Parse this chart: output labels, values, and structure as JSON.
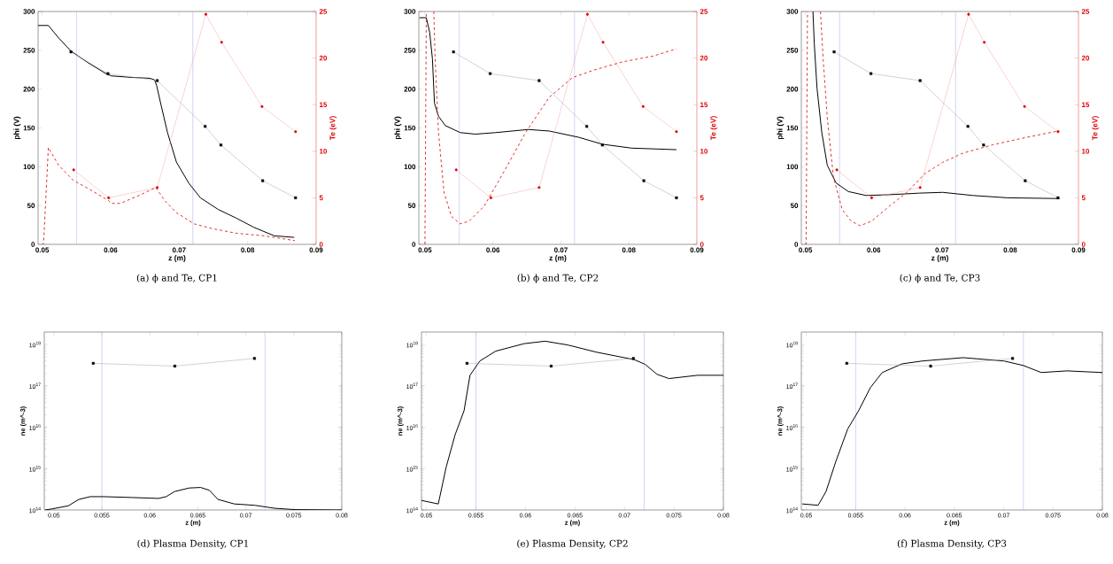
{
  "chart_data": [
    {
      "type": "line",
      "title": "(a) ϕ and Te, CP1",
      "xlabel": "z (m)",
      "ylabel": "phi (V)",
      "y2label": "Te (eV)",
      "xlim": [
        0.0494,
        0.09
      ],
      "xticks": [
        0.05,
        0.06,
        0.07,
        0.08,
        0.09
      ],
      "ylim": [
        0,
        300
      ],
      "yticks": [
        0,
        50,
        100,
        150,
        200,
        250,
        300
      ],
      "y2lim": [
        0,
        25
      ],
      "y2ticks": [
        0,
        5,
        10,
        15,
        20,
        25
      ],
      "ref_lines": [
        {
          "axis": "x",
          "value": 0.055,
          "color": "#b4b4f0"
        },
        {
          "axis": "x",
          "value": 0.072,
          "color": "#b4b4f0"
        }
      ],
      "series": [
        {
          "color": "#000000",
          "marker": "none",
          "line_style": "solid",
          "x": [
            0.0494,
            0.0509,
            0.0524,
            0.0542,
            0.0567,
            0.0593,
            0.0601,
            0.0632,
            0.0657,
            0.0664,
            0.0667,
            0.0674,
            0.0683,
            0.0696,
            0.0714,
            0.0731,
            0.0757,
            0.0783,
            0.0809,
            0.0839,
            0.0868
          ],
          "values": [
            282,
            282,
            266,
            249,
            234,
            220,
            217,
            215,
            214,
            212,
            205,
            178,
            144,
            106,
            79,
            60,
            45,
            34,
            22,
            11,
            9
          ]
        },
        {
          "color": "#000000",
          "marker": "square",
          "line_style": "solid",
          "x": [
            0.0542,
            0.0596,
            0.0668,
            0.0738,
            0.0761,
            0.0822,
            0.087
          ],
          "values": [
            248,
            220,
            211,
            152,
            128,
            82,
            60
          ]
        },
        {
          "color": "#e00000",
          "marker": "circle",
          "line_style": "solid",
          "axis": "y2",
          "x": [
            0.0546,
            0.0597,
            0.0668,
            0.0739,
            0.0762,
            0.0821,
            0.087
          ],
          "values": [
            8.0,
            5.0,
            6.1,
            24.7,
            21.7,
            14.8,
            12.1
          ]
        },
        {
          "color": "#e03030",
          "marker": "none",
          "line_style": "dashed",
          "axis": "y2",
          "x": [
            0.05,
            0.0502,
            0.0509,
            0.0524,
            0.0545,
            0.0567,
            0.0597,
            0.0601,
            0.0614,
            0.064,
            0.0666,
            0.0679,
            0.0696,
            0.0722,
            0.0748,
            0.0783,
            0.0826,
            0.0869
          ],
          "values": [
            0,
            0,
            10.4,
            8.5,
            6.9,
            6.0,
            4.7,
            4.4,
            4.4,
            5.2,
            6.1,
            4.7,
            3.4,
            2.2,
            1.7,
            1.2,
            0.9,
            0.4
          ]
        }
      ]
    },
    {
      "type": "line",
      "title": "(b) ϕ and Te, CP2",
      "xlabel": "z (m)",
      "ylabel": "phi (V)",
      "y2label": "Te (eV)",
      "xlim": [
        0.0491,
        0.09
      ],
      "xticks": [
        0.05,
        0.06,
        0.07,
        0.08,
        0.09
      ],
      "ylim": [
        0,
        300
      ],
      "yticks": [
        0,
        50,
        100,
        150,
        200,
        250,
        300
      ],
      "y2lim": [
        0,
        25
      ],
      "y2ticks": [
        0,
        5,
        10,
        15,
        20,
        25
      ],
      "ref_lines": [
        {
          "axis": "x",
          "value": 0.055,
          "color": "#b4b4f0"
        },
        {
          "axis": "x",
          "value": 0.072,
          "color": "#b4b4f0"
        }
      ],
      "series": [
        {
          "color": "#000000",
          "marker": "none",
          "line_style": "solid",
          "x": [
            0.0492,
            0.0502,
            0.0507,
            0.0511,
            0.0514,
            0.052,
            0.053,
            0.0552,
            0.0574,
            0.0604,
            0.0652,
            0.0683,
            0.0726,
            0.0761,
            0.0804,
            0.087
          ],
          "values": [
            292,
            292,
            273,
            239,
            182,
            165,
            153,
            144,
            142,
            144,
            148,
            146,
            138,
            129,
            124,
            122
          ]
        },
        {
          "color": "#000000",
          "marker": "square",
          "line_style": "solid",
          "x": [
            0.0542,
            0.0596,
            0.0668,
            0.0738,
            0.0761,
            0.0822,
            0.087
          ],
          "values": [
            248,
            220,
            211,
            152,
            128,
            82,
            60
          ]
        },
        {
          "color": "#e00000",
          "marker": "circle",
          "line_style": "solid",
          "axis": "y2",
          "x": [
            0.0546,
            0.0597,
            0.0668,
            0.0739,
            0.0762,
            0.0821,
            0.087
          ],
          "values": [
            8.0,
            5.0,
            6.1,
            24.7,
            21.7,
            14.8,
            12.1
          ]
        },
        {
          "color": "#e03030",
          "marker": "none",
          "line_style": "dashed",
          "axis": "y2",
          "x": [
            0.05,
            0.0502,
            0.0508,
            0.0513,
            0.0515,
            0.052,
            0.0528,
            0.0539,
            0.0552,
            0.0565,
            0.0587,
            0.0617,
            0.0648,
            0.0683,
            0.0717,
            0.0748,
            0.0791,
            0.0835,
            0.087
          ],
          "values": [
            0,
            25,
            null,
            25,
            19.9,
            12.0,
            5.6,
            3.0,
            2.2,
            2.5,
            4.1,
            7.9,
            12.0,
            15.8,
            17.9,
            18.7,
            19.6,
            20.2,
            21.0
          ]
        }
      ]
    },
    {
      "type": "line",
      "title": "(c) ϕ and Te, CP3",
      "xlabel": "z (m)",
      "ylabel": "phi (V)",
      "y2label": "Te (eV)",
      "xlim": [
        0.0494,
        0.09
      ],
      "xticks": [
        0.05,
        0.06,
        0.07,
        0.08,
        0.09
      ],
      "ylim": [
        0,
        300
      ],
      "yticks": [
        0,
        50,
        100,
        150,
        200,
        250,
        300
      ],
      "y2lim": [
        0,
        25
      ],
      "y2ticks": [
        0,
        5,
        10,
        15,
        20,
        25
      ],
      "ref_lines": [
        {
          "axis": "x",
          "value": 0.055,
          "color": "#b4b4f0"
        },
        {
          "axis": "x",
          "value": 0.072,
          "color": "#b4b4f0"
        }
      ],
      "series": [
        {
          "color": "#000000",
          "marker": "none",
          "line_style": "solid",
          "x": [
            0.0511,
            0.0513,
            0.0517,
            0.0524,
            0.0532,
            0.0545,
            0.0563,
            0.0589,
            0.0623,
            0.0667,
            0.0701,
            0.0745,
            0.0796,
            0.0872
          ],
          "values": [
            300,
            258,
            201,
            144,
            102,
            79,
            68,
            63,
            64,
            66,
            67,
            63,
            60,
            59
          ]
        },
        {
          "color": "#000000",
          "marker": "square",
          "line_style": "solid",
          "x": [
            0.0542,
            0.0596,
            0.0668,
            0.0738,
            0.0761,
            0.0822,
            0.087
          ],
          "values": [
            248,
            220,
            211,
            152,
            128,
            82,
            60
          ]
        },
        {
          "color": "#e00000",
          "marker": "circle",
          "line_style": "solid",
          "axis": "y2",
          "x": [
            0.0546,
            0.0597,
            0.0668,
            0.0739,
            0.0762,
            0.0821,
            0.087
          ],
          "values": [
            8.0,
            5.0,
            6.1,
            24.7,
            21.7,
            14.8,
            12.1
          ]
        },
        {
          "color": "#e03030",
          "marker": "none",
          "line_style": "dashed",
          "axis": "y2",
          "x": [
            0.05,
            0.0501,
            0.0503,
            0.051,
            0.0522,
            0.0526,
            0.0532,
            0.0541,
            0.0554,
            0.0567,
            0.058,
            0.0597,
            0.0623,
            0.0649,
            0.0675,
            0.0701,
            0.0731,
            0.0775,
            0.0818,
            0.0872
          ],
          "values": [
            0,
            0,
            25,
            null,
            25,
            19.9,
            13.6,
            7.2,
            3.7,
            2.5,
            2.0,
            2.5,
            4.1,
            5.6,
            7.6,
            8.8,
            9.8,
            10.7,
            11.4,
            12.2
          ]
        }
      ]
    },
    {
      "type": "line",
      "title": "(d) Plasma Density, CP1",
      "xlabel": "z (m)",
      "ylabel": "ne (m^-3)",
      "log": "y",
      "xlim": [
        0.049,
        0.08
      ],
      "xticks": [
        0.05,
        0.055,
        0.06,
        0.065,
        0.07,
        0.075,
        0.08
      ],
      "ylim": [
        100000000000000.0,
        2e+18
      ],
      "yticks": [
        {
          "value": 100000000000000.0,
          "label": "10$^{14}$"
        },
        {
          "value": 1000000000000000.0,
          "label": "10$^{15}$"
        },
        {
          "value": 1e+16,
          "label": "10$^{16}$"
        },
        {
          "value": 1e+17,
          "label": "10$^{17}$"
        },
        {
          "value": 1e+18,
          "label": "10$^{18}$"
        }
      ],
      "ref_lines": [
        {
          "axis": "x",
          "value": 0.055,
          "color": "#b4b4f0"
        },
        {
          "axis": "x",
          "value": 0.072,
          "color": "#b4b4f0"
        }
      ],
      "series": [
        {
          "color": "#000000",
          "marker": "none",
          "line_style": "solid",
          "x": [
            0.0491,
            0.0499,
            0.0515,
            0.0526,
            0.0538,
            0.0552,
            0.0582,
            0.0609,
            0.0617,
            0.0626,
            0.0641,
            0.0653,
            0.0662,
            0.0671,
            0.0688,
            0.0709,
            0.073,
            0.0751,
            0.08
          ],
          "values": [
            100000000000000.0,
            107000000000000.0,
            126000000000000.0,
            180000000000000.0,
            210000000000000.0,
            210000000000000.0,
            200000000000000.0,
            190000000000000.0,
            210000000000000.0,
            280000000000000.0,
            340000000000000.0,
            350000000000000.0,
            300000000000000.0,
            180000000000000.0,
            140000000000000.0,
            130000000000000.0,
            110000000000000.0,
            102000000000000.0,
            100000000000000.0
          ]
        },
        {
          "color": "#000000",
          "marker": "square",
          "line_style": "solid",
          "x": [
            0.0541,
            0.0626,
            0.0709
          ],
          "values": [
            3.5e+17,
            3e+17,
            4.6e+17
          ]
        }
      ]
    },
    {
      "type": "line",
      "title": "(e) Plasma Density, CP2",
      "xlabel": "z (m)",
      "ylabel": "ne (m^-3)",
      "log": "y",
      "xlim": [
        0.0495,
        0.08
      ],
      "xticks": [
        0.05,
        0.055,
        0.06,
        0.065,
        0.07,
        0.075,
        0.08
      ],
      "ylim": [
        100000000000000.0,
        2e+18
      ],
      "yticks": [
        {
          "value": 100000000000000.0,
          "label": "10$^{14}$"
        },
        {
          "value": 1000000000000000.0,
          "label": "10$^{15}$"
        },
        {
          "value": 1e+16,
          "label": "10$^{16}$"
        },
        {
          "value": 1e+17,
          "label": "10$^{17}$"
        },
        {
          "value": 1e+18,
          "label": "10$^{18}$"
        }
      ],
      "ref_lines": [
        {
          "axis": "x",
          "value": 0.055,
          "color": "#b4b4f0"
        },
        {
          "axis": "x",
          "value": 0.072,
          "color": "#b4b4f0"
        }
      ],
      "series": [
        {
          "color": "#000000",
          "marker": "none",
          "line_style": "solid",
          "x": [
            0.0495,
            0.0512,
            0.052,
            0.0529,
            0.0538,
            0.0544,
            0.0554,
            0.057,
            0.0599,
            0.062,
            0.0643,
            0.0672,
            0.071,
            0.0721,
            0.0733,
            0.0745,
            0.0774,
            0.08
          ],
          "values": [
            170000000000000.0,
            140000000000000.0,
            1100000000000000.0,
            6600000000000000.0,
            2.5e+16,
            1.8e+17,
            4e+17,
            6.9e+17,
            1.05e+18,
            1.2e+18,
            9.7e+17,
            6.5e+17,
            4.3e+17,
            3.3e+17,
            1.9e+17,
            1.5e+17,
            1.8e+17,
            1.8e+17
          ]
        },
        {
          "color": "#000000",
          "marker": "square",
          "line_style": "solid",
          "x": [
            0.0541,
            0.0626,
            0.0709
          ],
          "values": [
            3.5e+17,
            3e+17,
            4.6e+17
          ]
        }
      ]
    },
    {
      "type": "line",
      "title": "(f) Plasma Density, CP3",
      "xlabel": "z (m)",
      "ylabel": "ne (m^-3)",
      "log": "y",
      "xlim": [
        0.0495,
        0.08
      ],
      "xticks": [
        0.05,
        0.055,
        0.06,
        0.065,
        0.07,
        0.075,
        0.08
      ],
      "ylim": [
        100000000000000.0,
        2e+18
      ],
      "yticks": [
        {
          "value": 100000000000000.0,
          "label": "10$^{14}$"
        },
        {
          "value": 1000000000000000.0,
          "label": "10$^{15}$"
        },
        {
          "value": 1e+16,
          "label": "10$^{16}$"
        },
        {
          "value": 1e+17,
          "label": "10$^{17}$"
        },
        {
          "value": 1e+18,
          "label": "10$^{18}$"
        }
      ],
      "ref_lines": [
        {
          "axis": "x",
          "value": 0.055,
          "color": "#b4b4f0"
        },
        {
          "axis": "x",
          "value": 0.072,
          "color": "#b4b4f0"
        }
      ],
      "series": [
        {
          "color": "#000000",
          "marker": "none",
          "line_style": "solid",
          "x": [
            0.0496,
            0.0512,
            0.052,
            0.053,
            0.0542,
            0.0553,
            0.0565,
            0.0577,
            0.0597,
            0.0618,
            0.0659,
            0.07,
            0.072,
            0.0738,
            0.0764,
            0.08
          ],
          "values": [
            140000000000000.0,
            130000000000000.0,
            280000000000000.0,
            1500000000000000.0,
            9100000000000000.0,
            2.5e+16,
            9.1e+16,
            2.1e+17,
            3.4e+17,
            4e+17,
            4.8e+17,
            4e+17,
            3.1e+17,
            2.1e+17,
            2.3e+17,
            2.1e+17
          ]
        },
        {
          "color": "#000000",
          "marker": "square",
          "line_style": "solid",
          "x": [
            0.0541,
            0.0626,
            0.0709
          ],
          "values": [
            3.5e+17,
            3e+17,
            4.6e+17
          ]
        }
      ]
    }
  ]
}
